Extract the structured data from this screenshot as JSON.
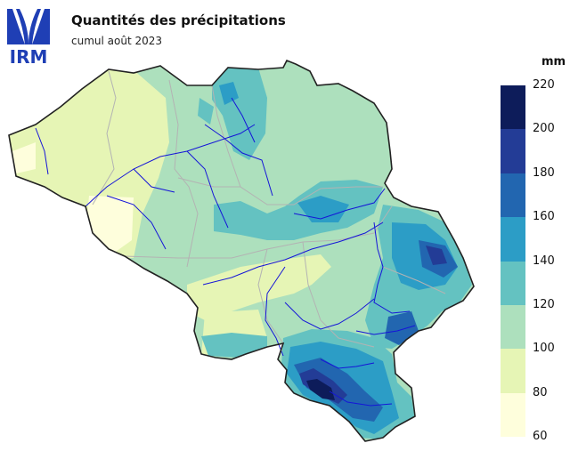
{
  "header": {
    "logo_text": "IRM",
    "title": "Quantités des précipitations",
    "subtitle": "cumul août 2023"
  },
  "legend": {
    "unit": "mm",
    "ticks": [
      "220",
      "200",
      "180",
      "160",
      "140",
      "120",
      "100",
      "80",
      "60"
    ],
    "classes": [
      {
        "from": 200,
        "to": 220,
        "color": "#0d1c5a"
      },
      {
        "from": 180,
        "to": 200,
        "color": "#233c96"
      },
      {
        "from": 160,
        "to": 180,
        "color": "#2266b0"
      },
      {
        "from": 140,
        "to": 160,
        "color": "#2c9dc6"
      },
      {
        "from": 120,
        "to": 140,
        "color": "#64c2c1"
      },
      {
        "from": 100,
        "to": 120,
        "color": "#ade0bd"
      },
      {
        "from": 80,
        "to": 100,
        "color": "#e6f5b5"
      },
      {
        "from": 60,
        "to": 80,
        "color": "#fefedc"
      }
    ]
  }
}
